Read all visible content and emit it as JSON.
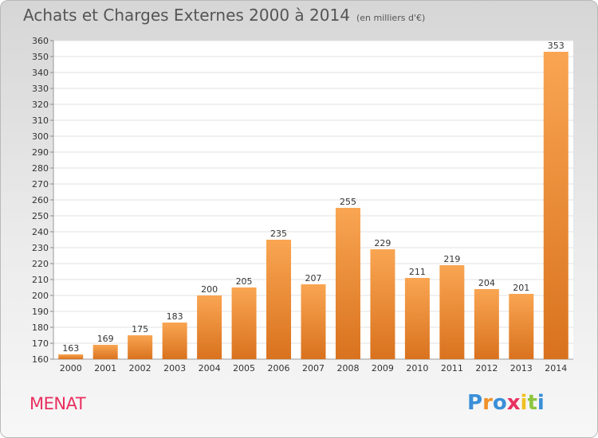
{
  "header": {
    "title": "Achats et Charges Externes 2000 à 2014",
    "unit": "(en milliers d'€)"
  },
  "footer": {
    "commune": "MENAT",
    "logo_letters": [
      "P",
      "r",
      "o",
      "x",
      "i",
      "t",
      "i"
    ],
    "logo_colors": [
      "#3a8fd8",
      "#f0902a",
      "#3a8fd8",
      "#e8305f",
      "#f0c020",
      "#8cc63f",
      "#3a8fd8"
    ]
  },
  "colors": {
    "bar_light": "#f9a552",
    "bar_dark": "#d9721e",
    "commune": "#e8305f"
  },
  "chart_data": {
    "type": "bar",
    "title": "Achats et Charges Externes 2000 à 2014",
    "subtitle": "(en milliers d'€)",
    "categories": [
      "2000",
      "2001",
      "2002",
      "2003",
      "2004",
      "2005",
      "2006",
      "2007",
      "2008",
      "2009",
      "2010",
      "2011",
      "2012",
      "2013",
      "2014"
    ],
    "values": [
      163,
      169,
      175,
      183,
      200,
      205,
      235,
      207,
      255,
      229,
      211,
      219,
      204,
      201,
      353
    ],
    "ylim": [
      160,
      360
    ],
    "yticks": [
      160,
      170,
      180,
      190,
      200,
      210,
      220,
      230,
      240,
      250,
      260,
      270,
      280,
      290,
      300,
      310,
      320,
      330,
      340,
      350,
      360
    ],
    "grid": true,
    "data_labels": true
  }
}
